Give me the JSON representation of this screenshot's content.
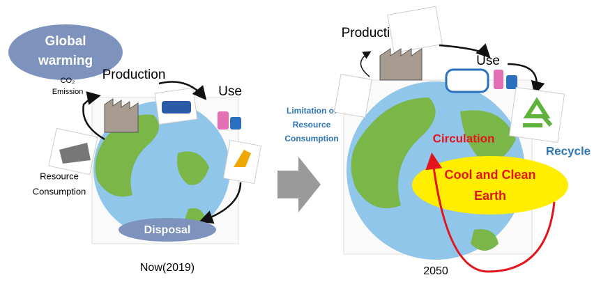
{
  "left": {
    "bubble": [
      "Global",
      "warming"
    ],
    "emission": [
      "CO₂",
      "Emission"
    ],
    "production": "Production",
    "use": "Use",
    "resource": [
      "Resource",
      "Consumption"
    ],
    "disposal": "Disposal",
    "caption": "Now(2019)"
  },
  "middle": {
    "limitation": [
      "Limitation of",
      "Resource",
      "Consumption"
    ]
  },
  "right": {
    "production": "Production",
    "use": "Use",
    "recycle": "Recycle",
    "circulation": "Circulation",
    "cool_clean": [
      "Cool and Clean",
      "Earth"
    ],
    "caption": "2050"
  }
}
